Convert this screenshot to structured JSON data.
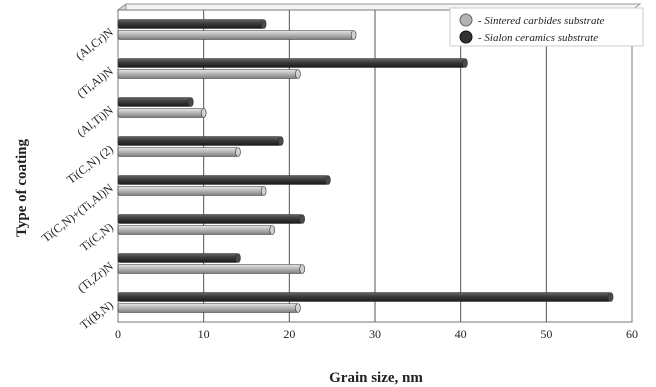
{
  "chart_data": {
    "type": "bar",
    "orientation": "horizontal",
    "categories": [
      "Ti(B,N)",
      "(Ti,Zr)N",
      "Ti(C,N)",
      "Ti(C,N)+(Ti,Al)N",
      "Ti(C,N) (2)",
      "(Al,Ti)N",
      "(Ti,Al)N",
      "(Al,Cr)N"
    ],
    "series": [
      {
        "name": "- Sintered carbides substrate",
        "color": "#b3b3b3",
        "values": [
          21,
          21.5,
          18,
          17,
          14,
          10,
          21,
          27.5
        ]
      },
      {
        "name": "- Sialon ceramics substrate",
        "color": "#333333",
        "values": [
          57.5,
          14,
          21.5,
          24.5,
          19,
          8.5,
          40.5,
          17
        ]
      }
    ],
    "xlabel": "Grain size, nm",
    "ylabel": "Type of coating",
    "xlim": [
      0,
      60
    ],
    "xticks": [
      "0",
      "10",
      "20",
      "30",
      "40",
      "50",
      "60"
    ],
    "grid": "vertical",
    "legend_position": "top-right"
  }
}
